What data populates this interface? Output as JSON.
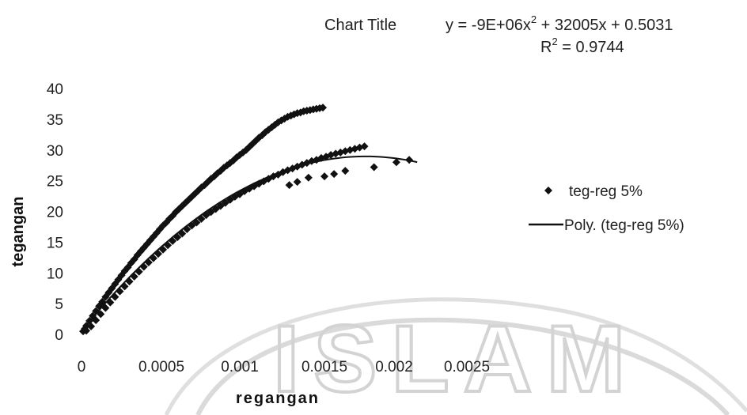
{
  "chart_data": {
    "type": "scatter",
    "title": "Chart Title",
    "trendline_equation": "y = -9E+06x",
    "trendline_equation_exp": "2",
    "trendline_equation_rest": " + 32005x + 0.5031",
    "r_squared_label": "R",
    "r_squared_exp": "2",
    "r_squared_value": " = 0.9744",
    "xlabel": "regangan",
    "ylabel": "tegangan",
    "xlim": [
      0,
      0.0025
    ],
    "ylim": [
      0,
      40
    ],
    "x_ticks": [
      "0",
      "0.0005",
      "0.001",
      "0.0015",
      "0.002",
      "0.0025"
    ],
    "y_ticks": [
      "0",
      "5",
      "10",
      "15",
      "20",
      "25",
      "30",
      "35",
      "40"
    ],
    "grid": false,
    "legend_position": "right",
    "series": [
      {
        "name": "teg-reg 5%",
        "marker": "diamond",
        "color": "#111111",
        "x": [
          1e-05,
          2e-05,
          3e-05,
          5e-05,
          7e-05,
          9e-05,
          0.00011,
          0.00013,
          0.00015,
          0.00017,
          0.00019,
          0.00021,
          0.00023,
          0.00025,
          0.00027,
          0.00029,
          0.00031,
          0.00033,
          0.00035,
          0.00037,
          0.00039,
          0.00041,
          0.00043,
          0.00045,
          0.00047,
          0.00049,
          0.00051,
          0.00053,
          0.00055,
          0.00057,
          0.00059,
          0.00061,
          0.00063,
          0.00065,
          0.00067,
          0.00069,
          0.00071,
          0.00073,
          0.00075,
          0.00077,
          0.00079,
          0.00081,
          0.00083,
          0.00085,
          0.00087,
          0.00089,
          0.00091,
          0.00093,
          0.00095,
          0.00097,
          0.00099,
          0.00101,
          0.00103,
          0.00105,
          0.00107,
          0.00109,
          0.00111,
          0.00113,
          0.00115,
          0.00117,
          0.00119,
          0.00121,
          0.00123,
          0.00125,
          0.00127,
          0.00129,
          0.00131,
          0.00133,
          0.00135,
          0.00137,
          0.00139,
          0.00141,
          0.00143,
          0.00145,
          0.00147,
          0.00149,
          0.00151,
          3e-05,
          6e-05,
          9e-05,
          0.00012,
          0.00015,
          0.00018,
          0.00021,
          0.00024,
          0.00027,
          0.0003,
          0.00033,
          0.00036,
          0.00039,
          0.00042,
          0.00045,
          0.00048,
          0.00051,
          0.00054,
          0.00057,
          0.0006,
          0.00063,
          0.00066,
          0.00069,
          0.00072,
          0.00075,
          0.00078,
          0.00081,
          0.00084,
          0.00087,
          0.0009,
          0.00093,
          0.00096,
          0.00099,
          0.00102,
          0.00105,
          0.00108,
          0.00111,
          0.00114,
          0.00117,
          0.0012,
          0.00123,
          0.00126,
          0.00129,
          0.00132,
          0.00135,
          0.00138,
          0.00141,
          0.00144,
          0.00147,
          0.0015,
          0.00153,
          0.00156,
          0.00159,
          0.00162,
          0.00165,
          0.00168,
          0.00171,
          0.00174,
          0.00177,
          0.0013,
          0.00135,
          0.00142,
          0.00152,
          0.00158,
          0.00165,
          0.00183,
          0.00197,
          0.00205
        ],
        "y": [
          0.5,
          0.9,
          1.4,
          2.2,
          3.0,
          3.8,
          4.6,
          5.3,
          6.1,
          6.8,
          7.5,
          8.2,
          8.9,
          9.6,
          10.3,
          10.9,
          11.6,
          12.2,
          12.9,
          13.5,
          14.1,
          14.7,
          15.3,
          15.9,
          16.5,
          17.1,
          17.7,
          18.2,
          18.8,
          19.3,
          19.9,
          20.4,
          20.9,
          21.4,
          21.9,
          22.4,
          22.9,
          23.4,
          23.9,
          24.3,
          24.8,
          25.3,
          25.7,
          26.2,
          26.6,
          27.1,
          27.5,
          27.9,
          28.3,
          28.8,
          29.2,
          29.6,
          30.0,
          30.5,
          31.0,
          31.5,
          32.0,
          32.4,
          32.9,
          33.3,
          33.7,
          34.1,
          34.5,
          34.8,
          35.1,
          35.4,
          35.6,
          35.8,
          36.0,
          36.1,
          36.3,
          36.4,
          36.5,
          36.6,
          36.7,
          36.8,
          36.9,
          0.6,
          1.3,
          2.3,
          3.3,
          4.3,
          5.2,
          6.1,
          7.0,
          7.8,
          8.6,
          9.4,
          10.2,
          11.0,
          11.7,
          12.4,
          13.1,
          13.8,
          14.5,
          15.2,
          15.8,
          16.4,
          17.1,
          17.7,
          18.2,
          18.8,
          19.4,
          19.9,
          20.4,
          20.9,
          21.4,
          21.9,
          22.4,
          22.8,
          23.3,
          23.7,
          24.1,
          24.5,
          24.9,
          25.3,
          25.7,
          26.0,
          26.4,
          26.7,
          27.0,
          27.3,
          27.6,
          27.9,
          28.2,
          28.4,
          28.7,
          28.9,
          29.2,
          29.4,
          29.6,
          29.8,
          30.0,
          30.2,
          30.4,
          30.6,
          24.3,
          24.8,
          25.5,
          25.7,
          26.1,
          26.6,
          27.2,
          28.0,
          28.4
        ]
      },
      {
        "name": "Poly. (teg-reg 5%)",
        "marker": "line",
        "color": "#111111",
        "trend_coefficients": [
          -9000000,
          32005,
          0.5031
        ],
        "x_range": [
          0,
          0.0021
        ]
      }
    ]
  }
}
